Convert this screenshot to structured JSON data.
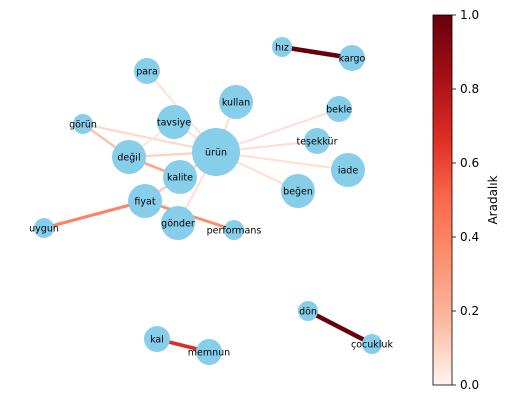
{
  "chart_data": {
    "type": "network",
    "colorbar": {
      "label": "Aradalık",
      "range": [
        0.0,
        1.0
      ],
      "ticks": [
        "0.0",
        "0.2",
        "0.4",
        "0.6",
        "0.8",
        "1.0"
      ],
      "colormap": "Reds",
      "colors": [
        "#fff5f0",
        "#fcbba1",
        "#fc9272",
        "#fb6a4a",
        "#de2d26",
        "#a50f15",
        "#67000d"
      ]
    },
    "node_color": "#87ceeb",
    "nodes": [
      {
        "id": "ürün",
        "size": "large"
      },
      {
        "id": "kullan",
        "size": "medium"
      },
      {
        "id": "tavsiye",
        "size": "medium"
      },
      {
        "id": "değil",
        "size": "medium"
      },
      {
        "id": "kalite",
        "size": "medium"
      },
      {
        "id": "fiyat",
        "size": "medium"
      },
      {
        "id": "iade",
        "size": "medium"
      },
      {
        "id": "beğen",
        "size": "medium"
      },
      {
        "id": "gönder",
        "size": "medium"
      },
      {
        "id": "para",
        "size": "small"
      },
      {
        "id": "bekle",
        "size": "small"
      },
      {
        "id": "teşekkür",
        "size": "small"
      },
      {
        "id": "kargo",
        "size": "small"
      },
      {
        "id": "kal",
        "size": "small"
      },
      {
        "id": "memnun",
        "size": "small"
      },
      {
        "id": "hız",
        "size": "xsmall"
      },
      {
        "id": "görün",
        "size": "xsmall"
      },
      {
        "id": "uygun",
        "size": "xsmall"
      },
      {
        "id": "performans",
        "size": "xsmall"
      },
      {
        "id": "dön",
        "size": "xsmall"
      },
      {
        "id": "çocukluk",
        "size": "xsmall"
      }
    ],
    "edges": [
      {
        "source": "hız",
        "target": "kargo",
        "betweenness": 1.0
      },
      {
        "source": "dön",
        "target": "çocukluk",
        "betweenness": 1.0
      },
      {
        "source": "kal",
        "target": "memnun",
        "betweenness": 0.67
      },
      {
        "source": "uygun",
        "target": "fiyat",
        "betweenness": 0.4
      },
      {
        "source": "fiyat",
        "target": "performans",
        "betweenness": 0.35
      },
      {
        "source": "değil",
        "target": "kalite",
        "betweenness": 0.25
      },
      {
        "source": "görün",
        "target": "değil",
        "betweenness": 0.15
      },
      {
        "source": "ürün",
        "target": "görün",
        "betweenness": 0.08
      },
      {
        "source": "ürün",
        "target": "para",
        "betweenness": 0.05
      },
      {
        "source": "ürün",
        "target": "kullan",
        "betweenness": 0.06
      },
      {
        "source": "ürün",
        "target": "tavsiye",
        "betweenness": 0.06
      },
      {
        "source": "ürün",
        "target": "değil",
        "betweenness": 0.1
      },
      {
        "source": "ürün",
        "target": "kalite",
        "betweenness": 0.12
      },
      {
        "source": "ürün",
        "target": "fiyat",
        "betweenness": 0.1
      },
      {
        "source": "ürün",
        "target": "gönder",
        "betweenness": 0.06
      },
      {
        "source": "ürün",
        "target": "bekle",
        "betweenness": 0.06
      },
      {
        "source": "ürün",
        "target": "teşekkür",
        "betweenness": 0.06
      },
      {
        "source": "ürün",
        "target": "iade",
        "betweenness": 0.06
      },
      {
        "source": "ürün",
        "target": "beğen",
        "betweenness": 0.06
      },
      {
        "source": "kalite",
        "target": "fiyat",
        "betweenness": 0.12
      },
      {
        "source": "tavsiye",
        "target": "değil",
        "betweenness": 0.04
      }
    ]
  }
}
